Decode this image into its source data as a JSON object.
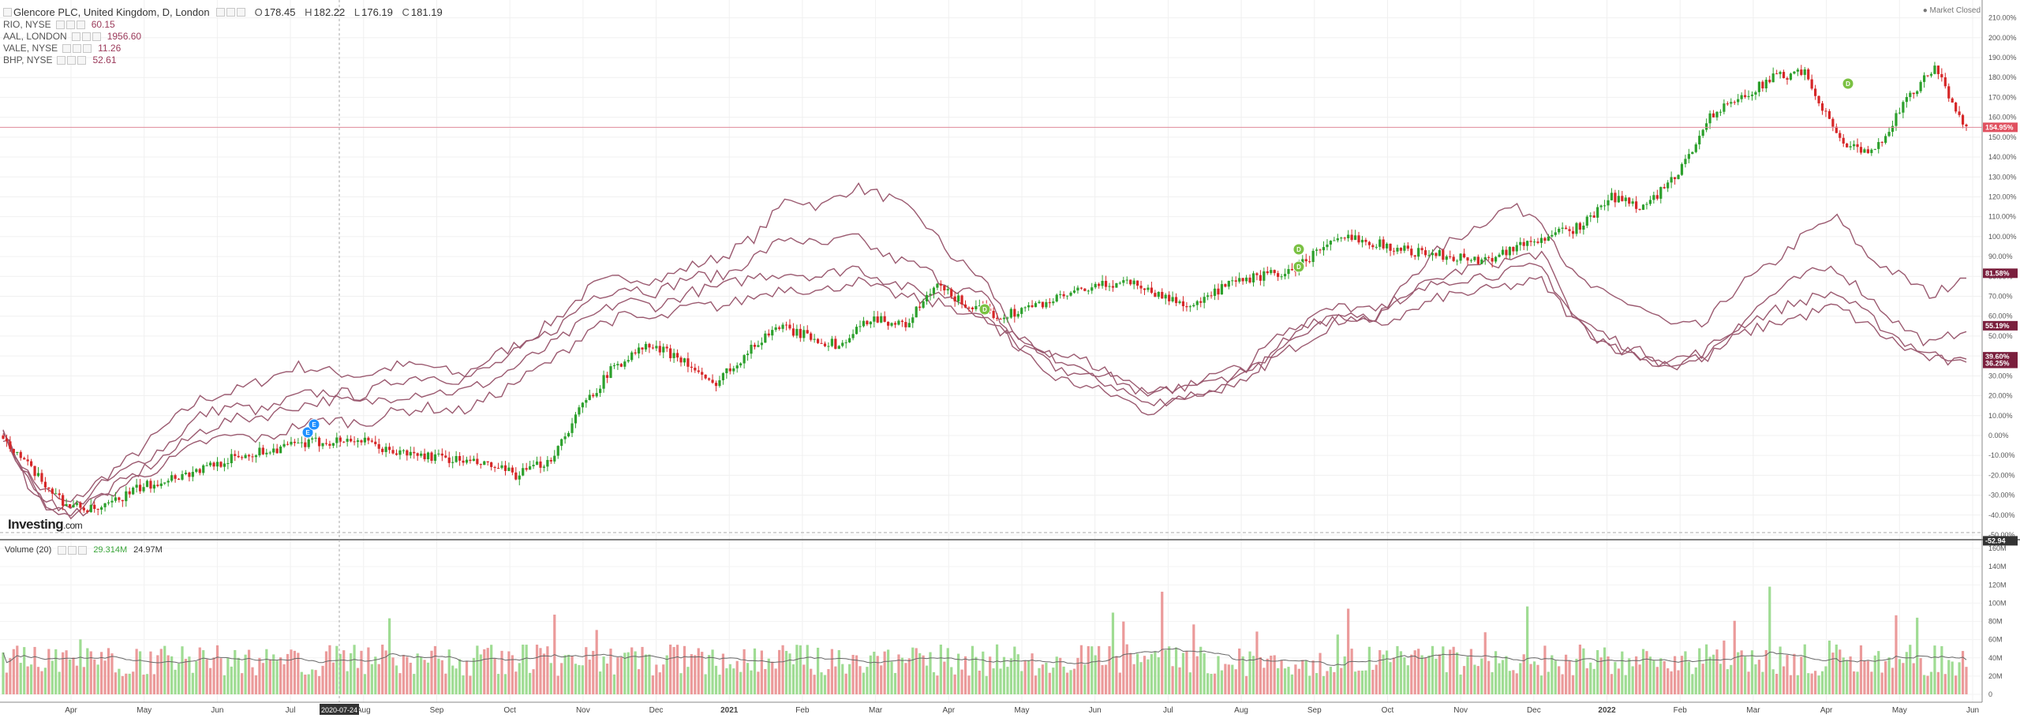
{
  "header": {
    "title": "Glencore PLC, United Kingdom, D, London",
    "ohlc": [
      {
        "k": "O",
        "v": "178.45"
      },
      {
        "k": "H",
        "v": "182.22"
      },
      {
        "k": "L",
        "v": "176.19"
      },
      {
        "k": "C",
        "v": "181.19"
      }
    ],
    "market_status": "Market Closed"
  },
  "compare": [
    {
      "symbol": "RIO, NYSE",
      "value": "60.15"
    },
    {
      "symbol": "AAL, LONDON",
      "value": "1956.60"
    },
    {
      "symbol": "VALE, NYSE",
      "value": "11.26"
    },
    {
      "symbol": "BHP, NYSE",
      "value": "52.61"
    }
  ],
  "volume": {
    "label": "Volume (20)",
    "v1": "29.314M",
    "v2": "24.97M"
  },
  "brand": {
    "name": "Investing",
    "suffix": ".com"
  },
  "crosshair_date": "2020-07-24",
  "colors": {
    "up": "#2ca02c",
    "down": "#d62728",
    "compare": "#9b5a70",
    "price_line": "#e08a9a",
    "badge": "#7a1f3d"
  },
  "chart_data": {
    "type": "line",
    "scale": "percent",
    "title": "Glencore PLC, United Kingdom, D, London",
    "ylim": [
      -50,
      215
    ],
    "y_ticks": [
      "210.00%",
      "200.00%",
      "190.00%",
      "180.00%",
      "170.00%",
      "160.00%",
      "150.00%",
      "140.00%",
      "130.00%",
      "120.00%",
      "110.00%",
      "100.00%",
      "90.00%",
      "80.00%",
      "70.00%",
      "60.00%",
      "50.00%",
      "40.00%",
      "30.00%",
      "20.00%",
      "10.00%",
      "0.00%",
      "-10.00%",
      "-20.00%",
      "-30.00%",
      "-40.00%",
      "-50.00%"
    ],
    "x_ticks": [
      "Apr",
      "May",
      "Jun",
      "Jul",
      "Aug",
      "Sep",
      "Oct",
      "Nov",
      "Dec",
      "2021",
      "Feb",
      "Mar",
      "Apr",
      "May",
      "Jun",
      "Jul",
      "Aug",
      "Sep",
      "Oct",
      "Nov",
      "Dec",
      "2022",
      "Feb",
      "Mar",
      "Apr",
      "May",
      "Jun"
    ],
    "current_label": "154.95%",
    "last_labels": [
      "81.58%",
      "55.19%",
      "39.60%",
      "36.25%"
    ],
    "bottom_label": "-52.94",
    "series": [
      {
        "name": "Glencore PLC",
        "role": "main",
        "values": [
          0,
          -20,
          -35,
          -38,
          -28,
          -22,
          -18,
          -12,
          -8,
          -5,
          -3,
          -2,
          -8,
          -10,
          -12,
          -15,
          -20,
          -12,
          15,
          35,
          45,
          40,
          25,
          40,
          55,
          50,
          45,
          60,
          55,
          75,
          65,
          60,
          65,
          70,
          75,
          78,
          70,
          65,
          75,
          80,
          82,
          95,
          100,
          95,
          92,
          90,
          88,
          95,
          100,
          105,
          120,
          115,
          130,
          160,
          170,
          180,
          182,
          150,
          140,
          165,
          185,
          155
        ]
      },
      {
        "name": "RIO, NYSE",
        "role": "compare",
        "values": [
          0,
          -25,
          -35,
          -22,
          -10,
          5,
          18,
          22,
          28,
          35,
          32,
          30,
          35,
          35,
          30,
          40,
          48,
          60,
          75,
          80,
          78,
          85,
          90,
          100,
          120,
          115,
          125,
          120,
          110,
          90,
          78,
          50,
          35,
          30,
          25,
          15,
          20,
          22,
          30,
          40,
          50,
          60,
          58,
          80,
          95,
          105,
          115,
          110,
          80,
          70,
          65,
          55,
          55,
          75,
          85,
          100,
          110,
          90,
          80,
          70,
          82
        ]
      },
      {
        "name": "AAL, LONDON",
        "role": "compare",
        "values": [
          0,
          -28,
          -38,
          -25,
          -15,
          -5,
          10,
          15,
          12,
          20,
          22,
          20,
          28,
          30,
          28,
          35,
          45,
          55,
          70,
          75,
          72,
          80,
          80,
          90,
          100,
          95,
          100,
          90,
          85,
          75,
          70,
          45,
          30,
          25,
          20,
          12,
          18,
          25,
          28,
          45,
          60,
          65,
          62,
          72,
          80,
          85,
          88,
          92,
          60,
          45,
          38,
          35,
          40,
          55,
          70,
          80,
          85,
          70,
          55,
          45,
          55
        ]
      },
      {
        "name": "VALE, NYSE",
        "role": "compare",
        "values": [
          0,
          -30,
          -40,
          -30,
          -20,
          -10,
          2,
          8,
          10,
          15,
          18,
          16,
          20,
          22,
          22,
          28,
          38,
          48,
          60,
          68,
          65,
          72,
          75,
          80,
          82,
          80,
          85,
          78,
          72,
          70,
          60,
          45,
          40,
          35,
          28,
          20,
          25,
          30,
          35,
          50,
          58,
          62,
          60,
          70,
          78,
          80,
          82,
          85,
          60,
          50,
          42,
          38,
          42,
          55,
          62,
          68,
          72,
          60,
          48,
          40,
          39.6
        ]
      },
      {
        "name": "BHP, NYSE",
        "role": "compare",
        "values": [
          0,
          -32,
          -42,
          -32,
          -22,
          -14,
          -4,
          0,
          -2,
          5,
          8,
          6,
          12,
          14,
          12,
          20,
          30,
          40,
          55,
          60,
          58,
          65,
          65,
          70,
          75,
          72,
          78,
          72,
          68,
          65,
          58,
          48,
          42,
          38,
          30,
          22,
          24,
          28,
          32,
          45,
          55,
          58,
          55,
          62,
          70,
          72,
          75,
          78,
          58,
          46,
          40,
          36,
          38,
          50,
          56,
          60,
          65,
          55,
          45,
          38,
          36.25
        ]
      }
    ],
    "volume_ylim": [
      0,
      160
    ],
    "volume_ticks": [
      "160M",
      "140M",
      "120M",
      "100M",
      "80M",
      "60M",
      "40M",
      "20M",
      "0"
    ]
  }
}
